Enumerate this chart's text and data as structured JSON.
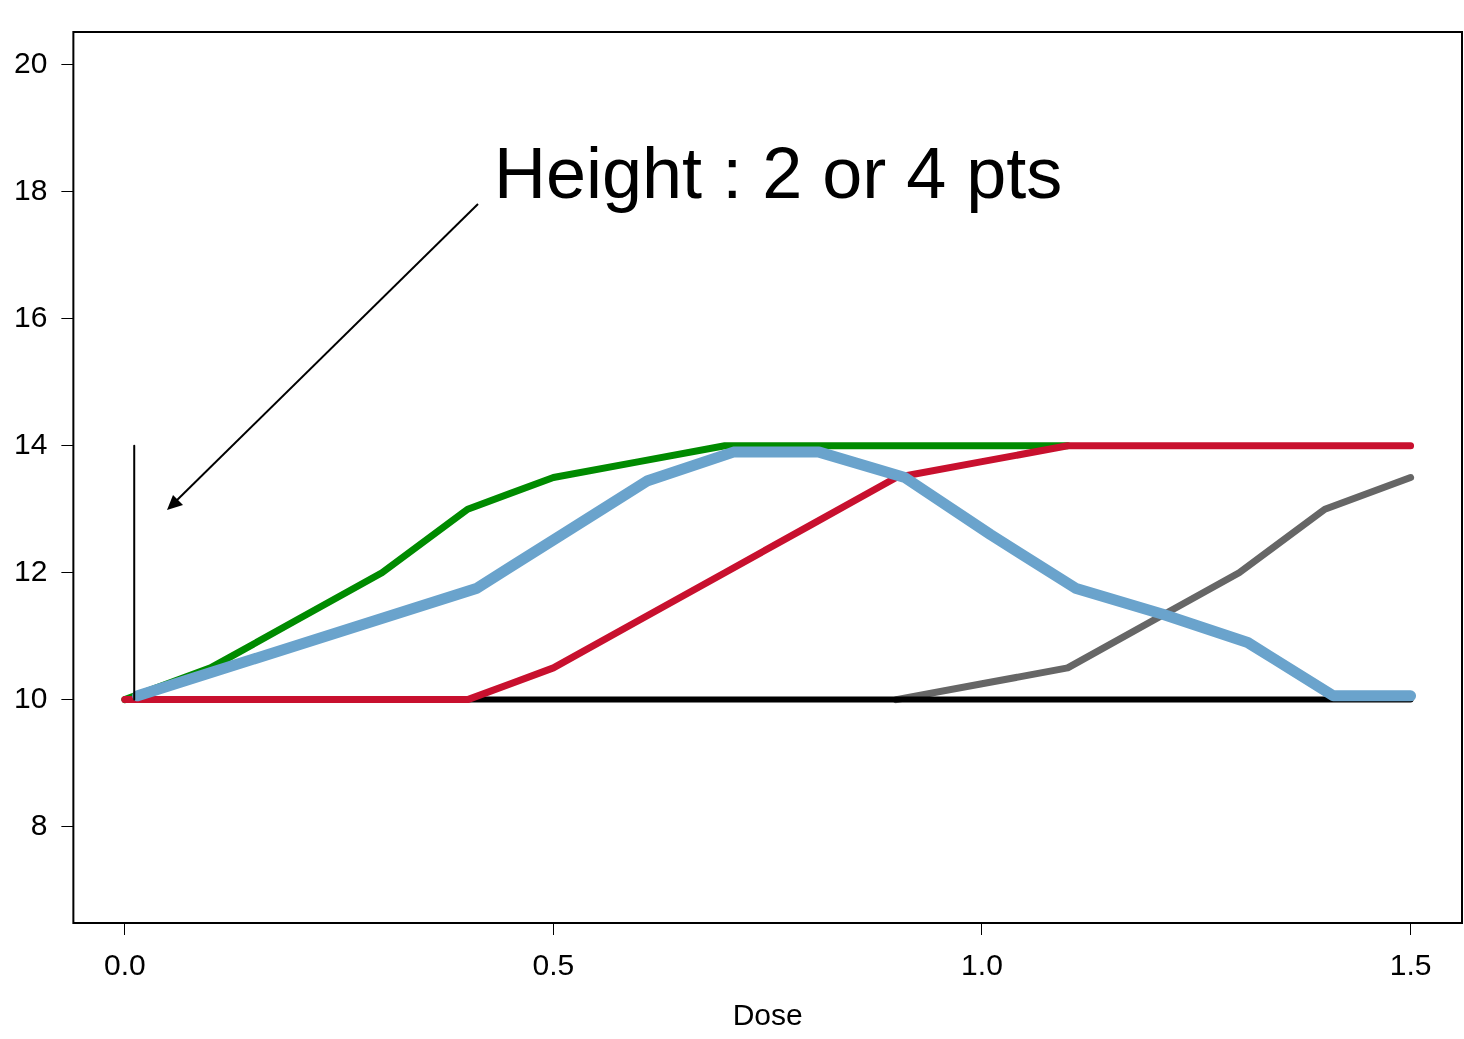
{
  "chart_data": {
    "type": "line",
    "xlabel": "Dose",
    "annotations": [
      "Height : 2 or 4 pts"
    ],
    "xlim": [
      -0.06,
      1.56
    ],
    "ylim": [
      6.48,
      20.52
    ],
    "xticks": [
      {
        "value": 0,
        "label": "0.0"
      },
      0.5,
      {
        "value": 1,
        "label": "1.0"
      },
      1.5
    ],
    "yticks": [
      8,
      10,
      12,
      14,
      16,
      18,
      20
    ],
    "grid": false,
    "legend": false,
    "marker": "none",
    "line_style": "solid",
    "series": [
      {
        "color": "#666666",
        "x": [
          0.9,
          1.0,
          1.1,
          1.2,
          1.3,
          1.4,
          1.5
        ],
        "values": [
          10,
          10.25,
          10.5,
          11.25,
          12,
          13,
          13.5
        ]
      },
      {
        "color": "#000000",
        "x": [
          0.4,
          0.5,
          0.6,
          0.7,
          0.8,
          0.9,
          1.0,
          1.1,
          1.2,
          1.3,
          1.4,
          1.5
        ],
        "values": [
          10,
          10,
          10,
          10,
          10,
          10,
          10,
          10,
          10,
          10,
          10,
          10
        ]
      },
      {
        "color": "#008b00",
        "x": [
          0,
          0.1,
          0.2,
          0.3,
          0.4,
          0.5,
          0.6,
          0.7,
          0.8,
          0.9,
          1.0,
          1.1
        ],
        "values": [
          10,
          10.5,
          11.25,
          12,
          13,
          13.5,
          13.75,
          14,
          14,
          14,
          14,
          14
        ]
      },
      {
        "color": "#c8102e",
        "x": [
          0,
          0.1,
          0.2,
          0.3,
          0.4,
          0.5,
          0.6,
          0.7,
          0.8,
          0.9,
          1.0,
          1.1,
          1.2,
          1.3,
          1.4,
          1.5
        ],
        "values": [
          10,
          10,
          10,
          10,
          10,
          10.5,
          11.25,
          12,
          12.75,
          13.5,
          13.75,
          14,
          14,
          14,
          14,
          14
        ]
      },
      {
        "color": "#6aa3cc",
        "x": [
          0.015,
          0.41,
          0.51,
          0.61,
          0.71,
          0.81,
          0.91,
          1.01,
          1.11,
          1.21,
          1.31,
          1.41,
          1.5
        ],
        "values": [
          10.06,
          11.75,
          12.6,
          13.45,
          13.9,
          13.9,
          13.5,
          12.6,
          11.75,
          11.35,
          10.9,
          10.06,
          10.06
        ]
      },
      {
        "color": "#000000",
        "x": [
          0.011,
          0.011
        ],
        "values": [
          10,
          14
        ]
      }
    ]
  }
}
